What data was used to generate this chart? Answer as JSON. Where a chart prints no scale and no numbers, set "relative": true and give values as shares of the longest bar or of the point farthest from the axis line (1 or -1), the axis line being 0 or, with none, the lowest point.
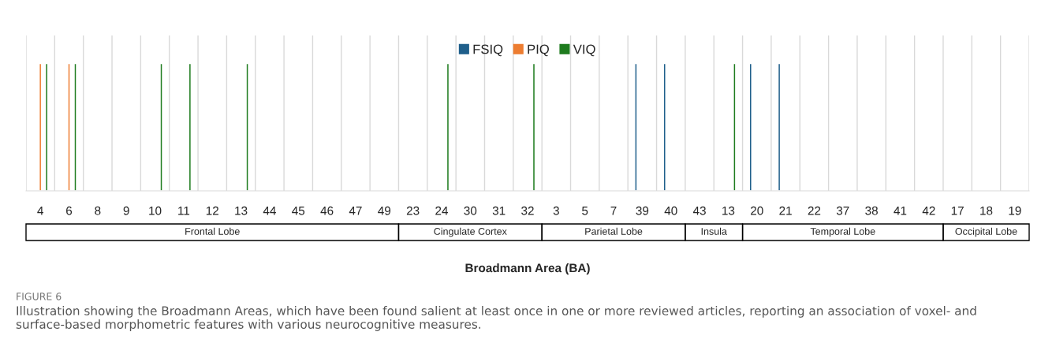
{
  "chart_data": {
    "type": "bar",
    "relative": true,
    "categories": [
      "4",
      "6",
      "8",
      "9",
      "10",
      "11",
      "12",
      "13",
      "44",
      "45",
      "46",
      "47",
      "49",
      "23",
      "24",
      "30",
      "31",
      "32",
      "3",
      "5",
      "7",
      "39",
      "40",
      "43",
      "13",
      "20",
      "21",
      "22",
      "37",
      "38",
      "41",
      "42",
      "17",
      "18",
      "19"
    ],
    "series": [
      {
        "name": "FSIQ",
        "color": "#1f5f8b",
        "values": [
          null,
          null,
          null,
          null,
          null,
          null,
          null,
          null,
          null,
          null,
          null,
          null,
          null,
          null,
          null,
          null,
          null,
          null,
          null,
          null,
          null,
          1,
          1,
          null,
          null,
          1,
          1,
          null,
          null,
          null,
          null,
          null,
          null,
          null,
          null
        ]
      },
      {
        "name": "PIQ",
        "color": "#ed7d31",
        "values": [
          1,
          1,
          null,
          null,
          null,
          null,
          null,
          null,
          null,
          null,
          null,
          null,
          null,
          null,
          null,
          null,
          null,
          null,
          null,
          null,
          null,
          null,
          null,
          null,
          null,
          null,
          null,
          null,
          null,
          null,
          null,
          null,
          null,
          null,
          null
        ]
      },
      {
        "name": "VIQ",
        "color": "#1e7b1e",
        "values": [
          1,
          1,
          null,
          null,
          1,
          1,
          null,
          1,
          null,
          null,
          null,
          null,
          null,
          null,
          1,
          null,
          null,
          1,
          null,
          null,
          null,
          null,
          null,
          null,
          1,
          null,
          null,
          null,
          null,
          null,
          null,
          null,
          null,
          null,
          null
        ]
      }
    ],
    "xlabel": "Broadmann Area (BA)",
    "legend": "top",
    "grid": "x",
    "annotations": [
      "Frontal Lobe",
      "Cingulate Cortex",
      "Parietal Lobe",
      "Insula",
      "Temporal Lobe",
      "Occipital Lobe",
      "FIGURE 6",
      "Illustration showing the Broadmann Areas, which have been found salient at least once in one or more reviewed articles, reporting an association of voxel- and surface-based morphometric features with various neurocognitive measures."
    ]
  }
}
